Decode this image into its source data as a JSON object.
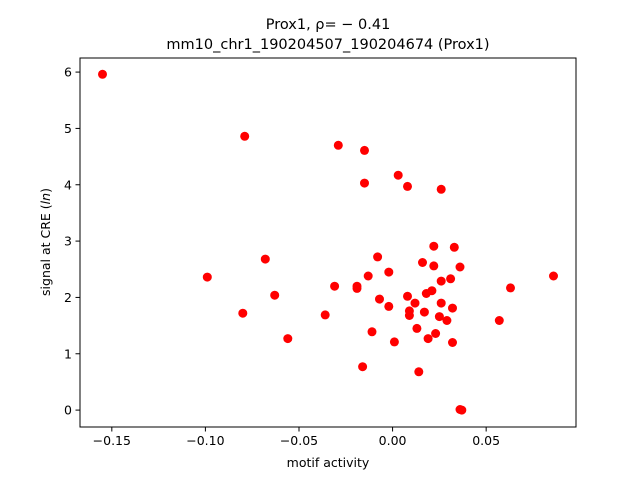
{
  "chart_data": {
    "type": "scatter",
    "title_line1": "Prox1, ρ= − 0.41",
    "title_line2": "mm10_chr1_190204507_190204674 (Prox1)",
    "xlabel": "motif activity",
    "ylabel": "signal at CRE (ln)",
    "xlim": [
      -0.167,
      0.098
    ],
    "ylim": [
      -0.3,
      6.25
    ],
    "xticks": [
      -0.15,
      -0.1,
      -0.05,
      0.0,
      0.05
    ],
    "xtick_labels": [
      "−0.15",
      "−0.10",
      "−0.05",
      "0.00",
      "0.05"
    ],
    "yticks": [
      0,
      1,
      2,
      3,
      4,
      5,
      6
    ],
    "ytick_labels": [
      "0",
      "1",
      "2",
      "3",
      "4",
      "5",
      "6"
    ],
    "grid": false,
    "marker_color": "#ff0000",
    "points": [
      {
        "x": -0.155,
        "y": 5.96
      },
      {
        "x": -0.079,
        "y": 4.86
      },
      {
        "x": -0.029,
        "y": 4.7
      },
      {
        "x": -0.015,
        "y": 4.61
      },
      {
        "x": -0.015,
        "y": 4.03
      },
      {
        "x": 0.003,
        "y": 4.17
      },
      {
        "x": 0.008,
        "y": 3.97
      },
      {
        "x": 0.026,
        "y": 3.92
      },
      {
        "x": -0.099,
        "y": 2.36
      },
      {
        "x": -0.08,
        "y": 1.72
      },
      {
        "x": -0.068,
        "y": 2.68
      },
      {
        "x": -0.063,
        "y": 2.04
      },
      {
        "x": -0.056,
        "y": 1.27
      },
      {
        "x": -0.036,
        "y": 1.69
      },
      {
        "x": -0.031,
        "y": 2.2
      },
      {
        "x": -0.019,
        "y": 2.2
      },
      {
        "x": -0.019,
        "y": 2.16
      },
      {
        "x": -0.013,
        "y": 2.38
      },
      {
        "x": -0.011,
        "y": 1.39
      },
      {
        "x": -0.008,
        "y": 2.72
      },
      {
        "x": -0.007,
        "y": 1.97
      },
      {
        "x": -0.016,
        "y": 0.77
      },
      {
        "x": -0.002,
        "y": 2.45
      },
      {
        "x": -0.002,
        "y": 1.84
      },
      {
        "x": 0.001,
        "y": 1.21
      },
      {
        "x": 0.008,
        "y": 2.02
      },
      {
        "x": 0.009,
        "y": 1.76
      },
      {
        "x": 0.009,
        "y": 1.68
      },
      {
        "x": 0.012,
        "y": 1.9
      },
      {
        "x": 0.013,
        "y": 1.45
      },
      {
        "x": 0.014,
        "y": 0.68
      },
      {
        "x": 0.016,
        "y": 2.62
      },
      {
        "x": 0.017,
        "y": 1.74
      },
      {
        "x": 0.018,
        "y": 2.07
      },
      {
        "x": 0.019,
        "y": 1.27
      },
      {
        "x": 0.021,
        "y": 2.12
      },
      {
        "x": 0.022,
        "y": 2.56
      },
      {
        "x": 0.022,
        "y": 2.91
      },
      {
        "x": 0.023,
        "y": 1.36
      },
      {
        "x": 0.025,
        "y": 1.66
      },
      {
        "x": 0.026,
        "y": 1.9
      },
      {
        "x": 0.026,
        "y": 2.29
      },
      {
        "x": 0.029,
        "y": 1.59
      },
      {
        "x": 0.031,
        "y": 2.33
      },
      {
        "x": 0.032,
        "y": 1.81
      },
      {
        "x": 0.032,
        "y": 1.2
      },
      {
        "x": 0.033,
        "y": 2.89
      },
      {
        "x": 0.036,
        "y": 2.54
      },
      {
        "x": 0.036,
        "y": 0.01
      },
      {
        "x": 0.037,
        "y": 0.0
      },
      {
        "x": 0.057,
        "y": 1.59
      },
      {
        "x": 0.063,
        "y": 2.17
      },
      {
        "x": 0.086,
        "y": 2.38
      }
    ]
  }
}
